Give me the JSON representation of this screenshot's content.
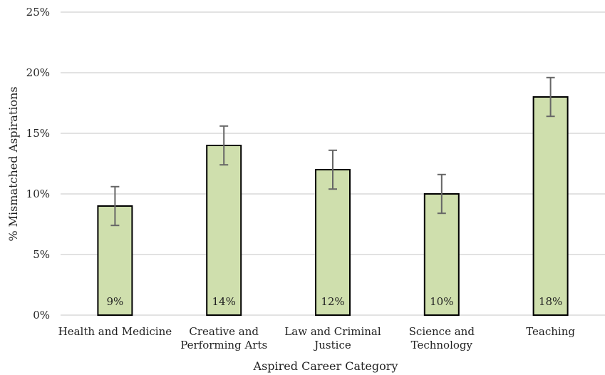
{
  "chart_data": {
    "type": "bar",
    "categories": [
      [
        "Health and Medicine"
      ],
      [
        "Creative and",
        "Performing Arts"
      ],
      [
        "Law and Criminal",
        "Justice"
      ],
      [
        "Science and",
        "Technology"
      ],
      [
        "Teaching"
      ]
    ],
    "values": [
      9,
      14,
      12,
      10,
      18
    ],
    "error_bars": [
      1.6,
      1.6,
      1.6,
      1.6,
      1.6
    ],
    "data_labels": [
      "9%",
      "14%",
      "12%",
      "10%",
      "18%"
    ],
    "title": "",
    "xlabel": "Aspired Career Category",
    "ylabel": "% Mismatched Aspirations",
    "ylim": [
      0,
      25
    ],
    "yticks": [
      0,
      5,
      10,
      15,
      20,
      25
    ],
    "ytick_labels": [
      "0%",
      "5%",
      "10%",
      "15%",
      "20%",
      "25%"
    ],
    "grid": true,
    "legend": "none",
    "colors": {
      "bar_fill": "#cfdfad",
      "bar_border": "#000000",
      "error_bar": "#666666",
      "gridline": "#d9d9d9"
    }
  }
}
